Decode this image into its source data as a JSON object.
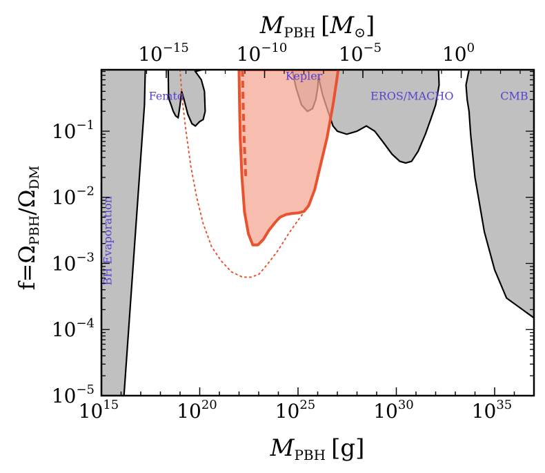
{
  "chart_data": {
    "type": "area",
    "xlabel": "M_PBH [g]",
    "xlabel_parts": {
      "main": "M",
      "sub": "PBH",
      "unit": "[g]"
    },
    "top_xlabel": "M_PBH [M_⊙]",
    "top_xlabel_parts": {
      "main": "M",
      "sub": "PBH",
      "unit_open": "[",
      "unit_main": "M",
      "unit_sub": "⊙",
      "unit_close": "]"
    },
    "ylabel": "f=Ω_PBH/Ω_DM",
    "ylabel_parts": {
      "prefix": "f=",
      "num": "Ω",
      "num_sub": "PBH",
      "slash": "/",
      "den": "Ω",
      "den_sub": "DM"
    },
    "x_scale": "log",
    "y_scale": "log",
    "xlim": [
      1000000000000000.0,
      1e+37
    ],
    "ylim": [
      1e-05,
      0.85
    ],
    "xticks": [
      {
        "base": "10",
        "exp": "15",
        "value": 1000000000000000.0
      },
      {
        "base": "10",
        "exp": "20",
        "value": 1e+20
      },
      {
        "base": "10",
        "exp": "25",
        "value": 1e+25
      },
      {
        "base": "10",
        "exp": "30",
        "value": 1e+30
      },
      {
        "base": "10",
        "exp": "35",
        "value": 1e+35
      }
    ],
    "top_xticks": [
      {
        "base": "10",
        "exp": "−15",
        "value_msun": 1e-15
      },
      {
        "base": "10",
        "exp": "−10",
        "value_msun": 1e-10
      },
      {
        "base": "10",
        "exp": "−5",
        "value_msun": 1e-05
      },
      {
        "base": "10",
        "exp": "0",
        "value_msun": 1
      }
    ],
    "yticks": [
      {
        "base": "10",
        "exp": "−5",
        "value": 1e-05
      },
      {
        "base": "10",
        "exp": "−4",
        "value": 0.0001
      },
      {
        "base": "10",
        "exp": "−3",
        "value": 0.001
      },
      {
        "base": "10",
        "exp": "−2",
        "value": 0.01
      },
      {
        "base": "10",
        "exp": "−1",
        "value": 0.1
      }
    ],
    "grid": false,
    "colors": {
      "constraint_fill": "#c0c0c0",
      "constraint_line": "#000000",
      "projection_fill": "#f4a793",
      "projection_line": "#e8522e",
      "label_color": "#5a3fd0"
    },
    "region_labels": [
      {
        "text": "BH Evaporation",
        "x": 3200000000000000.0,
        "y": 0.0022,
        "rotation": -90
      },
      {
        "text": "Femto",
        "x": 2e+18,
        "y": 0.3
      },
      {
        "text": "Kepler",
        "x": 2e+25,
        "y": 0.6
      },
      {
        "text": "EROS/MACHO",
        "x": 6.3e+30,
        "y": 0.3
      },
      {
        "text": "CMB",
        "x": 1e+36,
        "y": 0.3
      }
    ],
    "series": [
      {
        "kind": "constraint",
        "points": [
          [
            1000000000000000.0,
            1e-05
          ],
          [
            1000000000000000.0,
            0.85
          ],
          [
            1.7e+17,
            0.85
          ],
          [
            1.55e+17,
            0.25
          ],
          [
            1.4e+16,
            1e-05
          ]
        ]
      },
      {
        "kind": "constraint",
        "points": [
          [
            1.3e+18,
            0.85
          ],
          [
            2.5e+18,
            0.85
          ],
          [
            2.6e+18,
            0.35
          ],
          [
            2.8e+18,
            0.3
          ],
          [
            3.5e+18,
            0.25
          ],
          [
            4.5e+18,
            0.2
          ],
          [
            6e+18,
            0.17
          ],
          [
            8e+18,
            0.16
          ],
          [
            9e+18,
            0.2
          ],
          [
            1e+19,
            0.25
          ],
          [
            1.2e+19,
            0.4
          ],
          [
            1.6e+19,
            0.3
          ],
          [
            2.5e+19,
            0.18
          ],
          [
            4e+19,
            0.13
          ],
          [
            6e+19,
            0.12
          ],
          [
            1e+20,
            0.14
          ],
          [
            1.5e+20,
            0.15
          ],
          [
            1.9e+20,
            0.2
          ],
          [
            1.75e+20,
            0.4
          ],
          [
            1.2e+20,
            0.6
          ],
          [
            6e+19,
            0.8
          ],
          [
            1.3e+20,
            0.85
          ]
        ]
      },
      {
        "kind": "constraint",
        "points": [
          [
            1e+23,
            0.85
          ],
          [
            9e+23,
            0.85
          ],
          [
            5e+24,
            0.85
          ],
          [
            8e+24,
            0.45
          ],
          [
            1.5e+25,
            0.25
          ],
          [
            3e+25,
            0.2
          ],
          [
            5.5e+25,
            0.22
          ],
          [
            8e+25,
            0.3
          ],
          [
            1e+26,
            0.45
          ],
          [
            1.1e+26,
            0.7
          ],
          [
            1.25e+26,
            0.55
          ],
          [
            1.8e+26,
            0.35
          ],
          [
            3e+26,
            0.22
          ],
          [
            6e+26,
            0.12
          ],
          [
            1e+27,
            0.1
          ],
          [
            3e+27,
            0.09
          ],
          [
            1e+28,
            0.1
          ],
          [
            3e+28,
            0.12
          ],
          [
            8e+28,
            0.1
          ],
          [
            2e+29,
            0.07
          ],
          [
            6e+29,
            0.045
          ],
          [
            1.5e+30,
            0.035
          ],
          [
            3e+30,
            0.033
          ],
          [
            6e+30,
            0.035
          ],
          [
            1.3e+31,
            0.05
          ],
          [
            3e+31,
            0.09
          ],
          [
            6e+31,
            0.16
          ],
          [
            1e+32,
            0.25
          ],
          [
            1.5e+32,
            0.5
          ],
          [
            1.4e+32,
            0.85
          ]
        ]
      },
      {
        "kind": "constraint",
        "points": [
          [
            5e+33,
            0.85
          ],
          [
            3.5e+33,
            0.5
          ],
          [
            4e+33,
            0.3
          ],
          [
            5e+33,
            0.2
          ],
          [
            6e+33,
            0.09
          ],
          [
            1e+34,
            0.02
          ],
          [
            3e+34,
            0.003
          ],
          [
            1e+35,
            0.0008
          ],
          [
            4e+35,
            0.0003
          ],
          [
            1e+37,
            0.00015
          ],
          [
            1e+37,
            0.85
          ]
        ]
      },
      {
        "kind": "projection",
        "points": [
          [
            1e+22,
            0.85
          ],
          [
            1.05e+22,
            0.3
          ],
          [
            1.15e+22,
            0.08
          ],
          [
            1.4e+22,
            0.02
          ],
          [
            1.9e+22,
            0.006
          ],
          [
            3e+22,
            0.0028
          ],
          [
            5e+22,
            0.0019
          ],
          [
            9e+22,
            0.0019
          ],
          [
            1.7e+23,
            0.0023
          ],
          [
            3.4e+23,
            0.0032
          ],
          [
            7e+23,
            0.0042
          ],
          [
            1.2e+24,
            0.005
          ],
          [
            2.5e+24,
            0.0055
          ],
          [
            5e+24,
            0.0057
          ],
          [
            1e+25,
            0.0058
          ],
          [
            2e+25,
            0.0061
          ],
          [
            3.5e+25,
            0.0075
          ],
          [
            7e+25,
            0.013
          ],
          [
            1.3e+26,
            0.028
          ],
          [
            3e+26,
            0.08
          ],
          [
            6e+26,
            0.25
          ],
          [
            9e+26,
            0.55
          ],
          [
            1.1e+27,
            0.85
          ]
        ]
      },
      {
        "kind": "projection-dashed",
        "points": [
          [
            1.5e+22,
            0.85
          ],
          [
            1.6e+22,
            0.3
          ],
          [
            1.8e+22,
            0.08
          ],
          [
            2.2e+22,
            0.02
          ]
        ]
      },
      {
        "kind": "projection-dotted",
        "points": [
          [
            1e+19,
            0.85
          ],
          [
            1.3e+19,
            0.3
          ],
          [
            2e+19,
            0.1
          ],
          [
            3.5e+19,
            0.03
          ],
          [
            7e+19,
            0.01
          ],
          [
            1.5e+20,
            0.004
          ],
          [
            4e+20,
            0.0018
          ],
          [
            1.2e+21,
            0.0011
          ],
          [
            4e+21,
            0.00075
          ],
          [
            1.5e+22,
            0.00062
          ],
          [
            4e+22,
            0.00062
          ],
          [
            1e+23,
            0.00068
          ],
          [
            3e+23,
            0.001
          ],
          [
            1e+24,
            0.0016
          ],
          [
            3e+24,
            0.0027
          ],
          [
            1e+25,
            0.0045
          ],
          [
            2.5e+25,
            0.0065
          ]
        ]
      }
    ]
  }
}
